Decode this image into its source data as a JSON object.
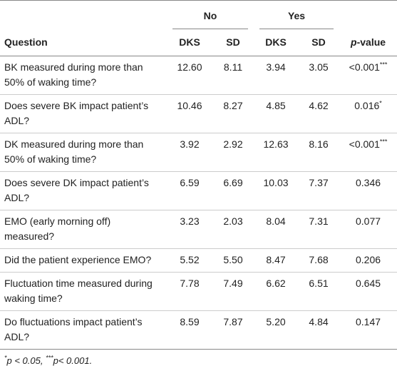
{
  "table": {
    "groups": [
      "No",
      "Yes"
    ],
    "columns": [
      "Question",
      "DKS",
      "SD",
      "DKS",
      "SD"
    ],
    "p_header": {
      "italic": "p",
      "text": "-value"
    },
    "rows": [
      {
        "question": "BK measured during more than 50% of waking time?",
        "values": [
          "12.60",
          "8.11",
          "3.94",
          "3.05"
        ],
        "p": "<0.001",
        "sig": "***"
      },
      {
        "question": "Does severe BK impact patient’s ADL?",
        "values": [
          "10.46",
          "8.27",
          "4.85",
          "4.62"
        ],
        "p": "0.016",
        "sig": "*"
      },
      {
        "question": "DK measured during more than 50% of waking time?",
        "values": [
          "3.92",
          "2.92",
          "12.63",
          "8.16"
        ],
        "p": "<0.001",
        "sig": "***"
      },
      {
        "question": "Does severe DK impact patient’s ADL?",
        "values": [
          "6.59",
          "6.69",
          "10.03",
          "7.37"
        ],
        "p": "0.346"
      },
      {
        "question": "EMO (early morning off) measured?",
        "values": [
          "3.23",
          "2.03",
          "8.04",
          "7.31"
        ],
        "p": "0.077"
      },
      {
        "question": "Did the patient experience EMO?",
        "values": [
          "5.52",
          "5.50",
          "8.47",
          "7.68"
        ],
        "p": "0.206"
      },
      {
        "question": "Fluctuation time measured during waking time?",
        "values": [
          "7.78",
          "7.49",
          "6.62",
          "6.51"
        ],
        "p": "0.645"
      },
      {
        "question": "Do fluctuations impact patient’s ADL?",
        "values": [
          "8.59",
          "7.87",
          "5.20",
          "4.84"
        ],
        "p": "0.147"
      }
    ]
  },
  "footnote": [
    "*",
    "p < 0.05, ",
    "***",
    "p< 0.001."
  ]
}
